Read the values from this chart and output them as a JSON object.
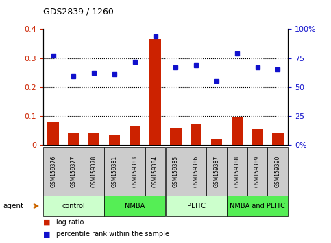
{
  "title": "GDS2839 / 1260",
  "samples": [
    "GSM159376",
    "GSM159377",
    "GSM159378",
    "GSM159381",
    "GSM159383",
    "GSM159384",
    "GSM159385",
    "GSM159386",
    "GSM159387",
    "GSM159388",
    "GSM159389",
    "GSM159390"
  ],
  "log_ratio": [
    0.08,
    0.04,
    0.04,
    0.035,
    0.065,
    0.365,
    0.057,
    0.072,
    0.02,
    0.095,
    0.055,
    0.04
  ],
  "percentile_rank_pct": [
    77,
    59,
    62,
    61,
    72,
    94,
    67,
    69,
    55,
    79,
    67,
    65
  ],
  "bar_color": "#cc2200",
  "dot_color": "#1111cc",
  "ylim_left": [
    0.0,
    0.4
  ],
  "ylim_right": [
    0,
    100
  ],
  "yticks_left": [
    0.0,
    0.1,
    0.2,
    0.3,
    0.4
  ],
  "ytick_labels_left": [
    "0",
    "0.1",
    "0.2",
    "0.3",
    "0.4"
  ],
  "yticks_right": [
    0,
    25,
    50,
    75,
    100
  ],
  "ytick_labels_right": [
    "0%",
    "25",
    "50",
    "75",
    "100%"
  ],
  "groups": [
    {
      "label": "control",
      "start": 0,
      "end": 3,
      "color": "#ccffcc"
    },
    {
      "label": "NMBA",
      "start": 3,
      "end": 6,
      "color": "#55ee55"
    },
    {
      "label": "PEITC",
      "start": 6,
      "end": 9,
      "color": "#ccffcc"
    },
    {
      "label": "NMBA and PEITC",
      "start": 9,
      "end": 12,
      "color": "#55ee55"
    }
  ],
  "agent_label": "agent",
  "legend_bar_label": "log ratio",
  "legend_dot_label": "percentile rank within the sample",
  "background_color": "#ffffff",
  "sample_box_color": "#cccccc",
  "hgrid_values": [
    0.1,
    0.2,
    0.3
  ]
}
